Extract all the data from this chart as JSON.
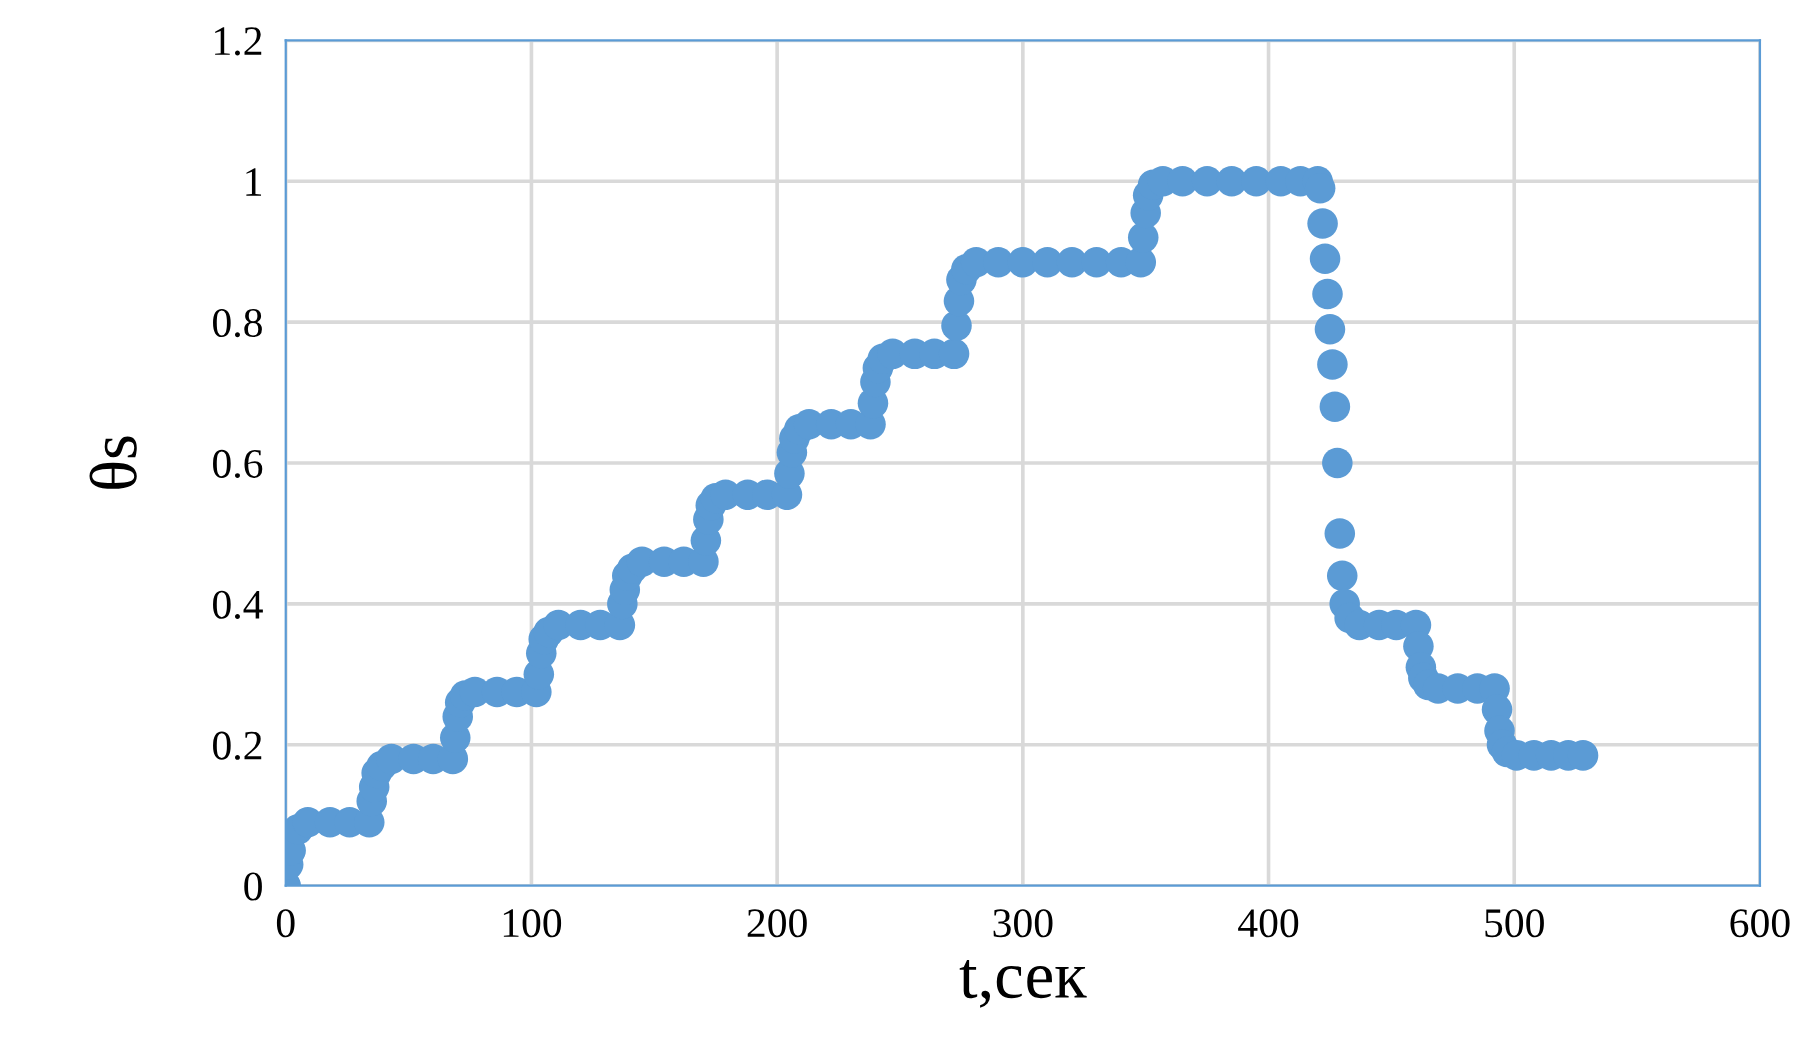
{
  "chart_data": {
    "type": "scatter",
    "xlabel": "t,сек",
    "ylabel": "θs",
    "xlim": [
      0,
      600
    ],
    "xticks": [
      0,
      100,
      200,
      300,
      400,
      500,
      600
    ],
    "ylim": [
      0,
      1.2
    ],
    "yticks": [
      0,
      {
        "value": 0.2,
        "label": "0.2"
      },
      {
        "value": 0.4,
        "label": "0.4"
      },
      {
        "value": 0.6,
        "label": "0.6"
      },
      {
        "value": 0.8,
        "label": "0.8"
      },
      1,
      {
        "value": 1.2,
        "label": "1.2"
      }
    ],
    "grid": true,
    "marker": "circle",
    "series": [
      {
        "color": "#5b9bd5",
        "x": [
          0,
          1,
          2,
          5,
          9,
          18,
          26,
          34,
          35,
          36,
          37,
          39,
          43,
          52,
          60,
          68,
          69,
          70,
          71,
          73,
          77,
          86,
          94,
          102,
          103,
          104,
          105,
          107,
          111,
          120,
          128,
          136,
          137,
          138,
          139,
          141,
          145,
          154,
          162,
          170,
          171,
          172,
          173,
          175,
          179,
          188,
          196,
          204,
          205,
          206,
          207,
          209,
          213,
          222,
          230,
          238,
          239,
          240,
          241,
          243,
          247,
          256,
          264,
          272,
          273,
          274,
          275,
          277,
          281,
          290,
          300,
          310,
          320,
          330,
          340,
          348,
          349,
          350,
          351,
          353,
          357,
          365,
          375,
          385,
          395,
          405,
          413,
          420,
          421,
          422,
          423,
          424,
          425,
          426,
          427,
          428,
          429,
          430,
          431,
          433,
          437,
          445,
          452,
          460,
          461,
          462,
          463,
          465,
          469,
          477,
          485,
          492,
          493,
          494,
          495,
          497,
          501,
          508,
          515,
          522,
          528
        ],
        "values": [
          0,
          0.03,
          0.05,
          0.08,
          0.09,
          0.09,
          0.09,
          0.09,
          0.12,
          0.14,
          0.16,
          0.17,
          0.18,
          0.18,
          0.18,
          0.18,
          0.21,
          0.24,
          0.26,
          0.27,
          0.275,
          0.275,
          0.275,
          0.275,
          0.3,
          0.33,
          0.35,
          0.36,
          0.37,
          0.37,
          0.37,
          0.37,
          0.4,
          0.42,
          0.44,
          0.45,
          0.46,
          0.46,
          0.46,
          0.46,
          0.49,
          0.52,
          0.54,
          0.55,
          0.555,
          0.555,
          0.555,
          0.555,
          0.585,
          0.615,
          0.635,
          0.648,
          0.655,
          0.655,
          0.655,
          0.655,
          0.685,
          0.715,
          0.735,
          0.748,
          0.755,
          0.755,
          0.755,
          0.755,
          0.795,
          0.83,
          0.86,
          0.875,
          0.885,
          0.885,
          0.885,
          0.885,
          0.885,
          0.885,
          0.885,
          0.885,
          0.92,
          0.955,
          0.98,
          0.995,
          1,
          1,
          1,
          1,
          1,
          1,
          1,
          1,
          0.99,
          0.94,
          0.89,
          0.84,
          0.79,
          0.74,
          0.68,
          0.6,
          0.5,
          0.44,
          0.4,
          0.38,
          0.37,
          0.37,
          0.37,
          0.37,
          0.34,
          0.31,
          0.295,
          0.285,
          0.28,
          0.28,
          0.28,
          0.28,
          0.25,
          0.22,
          0.2,
          0.19,
          0.185,
          0.185,
          0.185,
          0.185,
          0.185
        ]
      }
    ]
  }
}
